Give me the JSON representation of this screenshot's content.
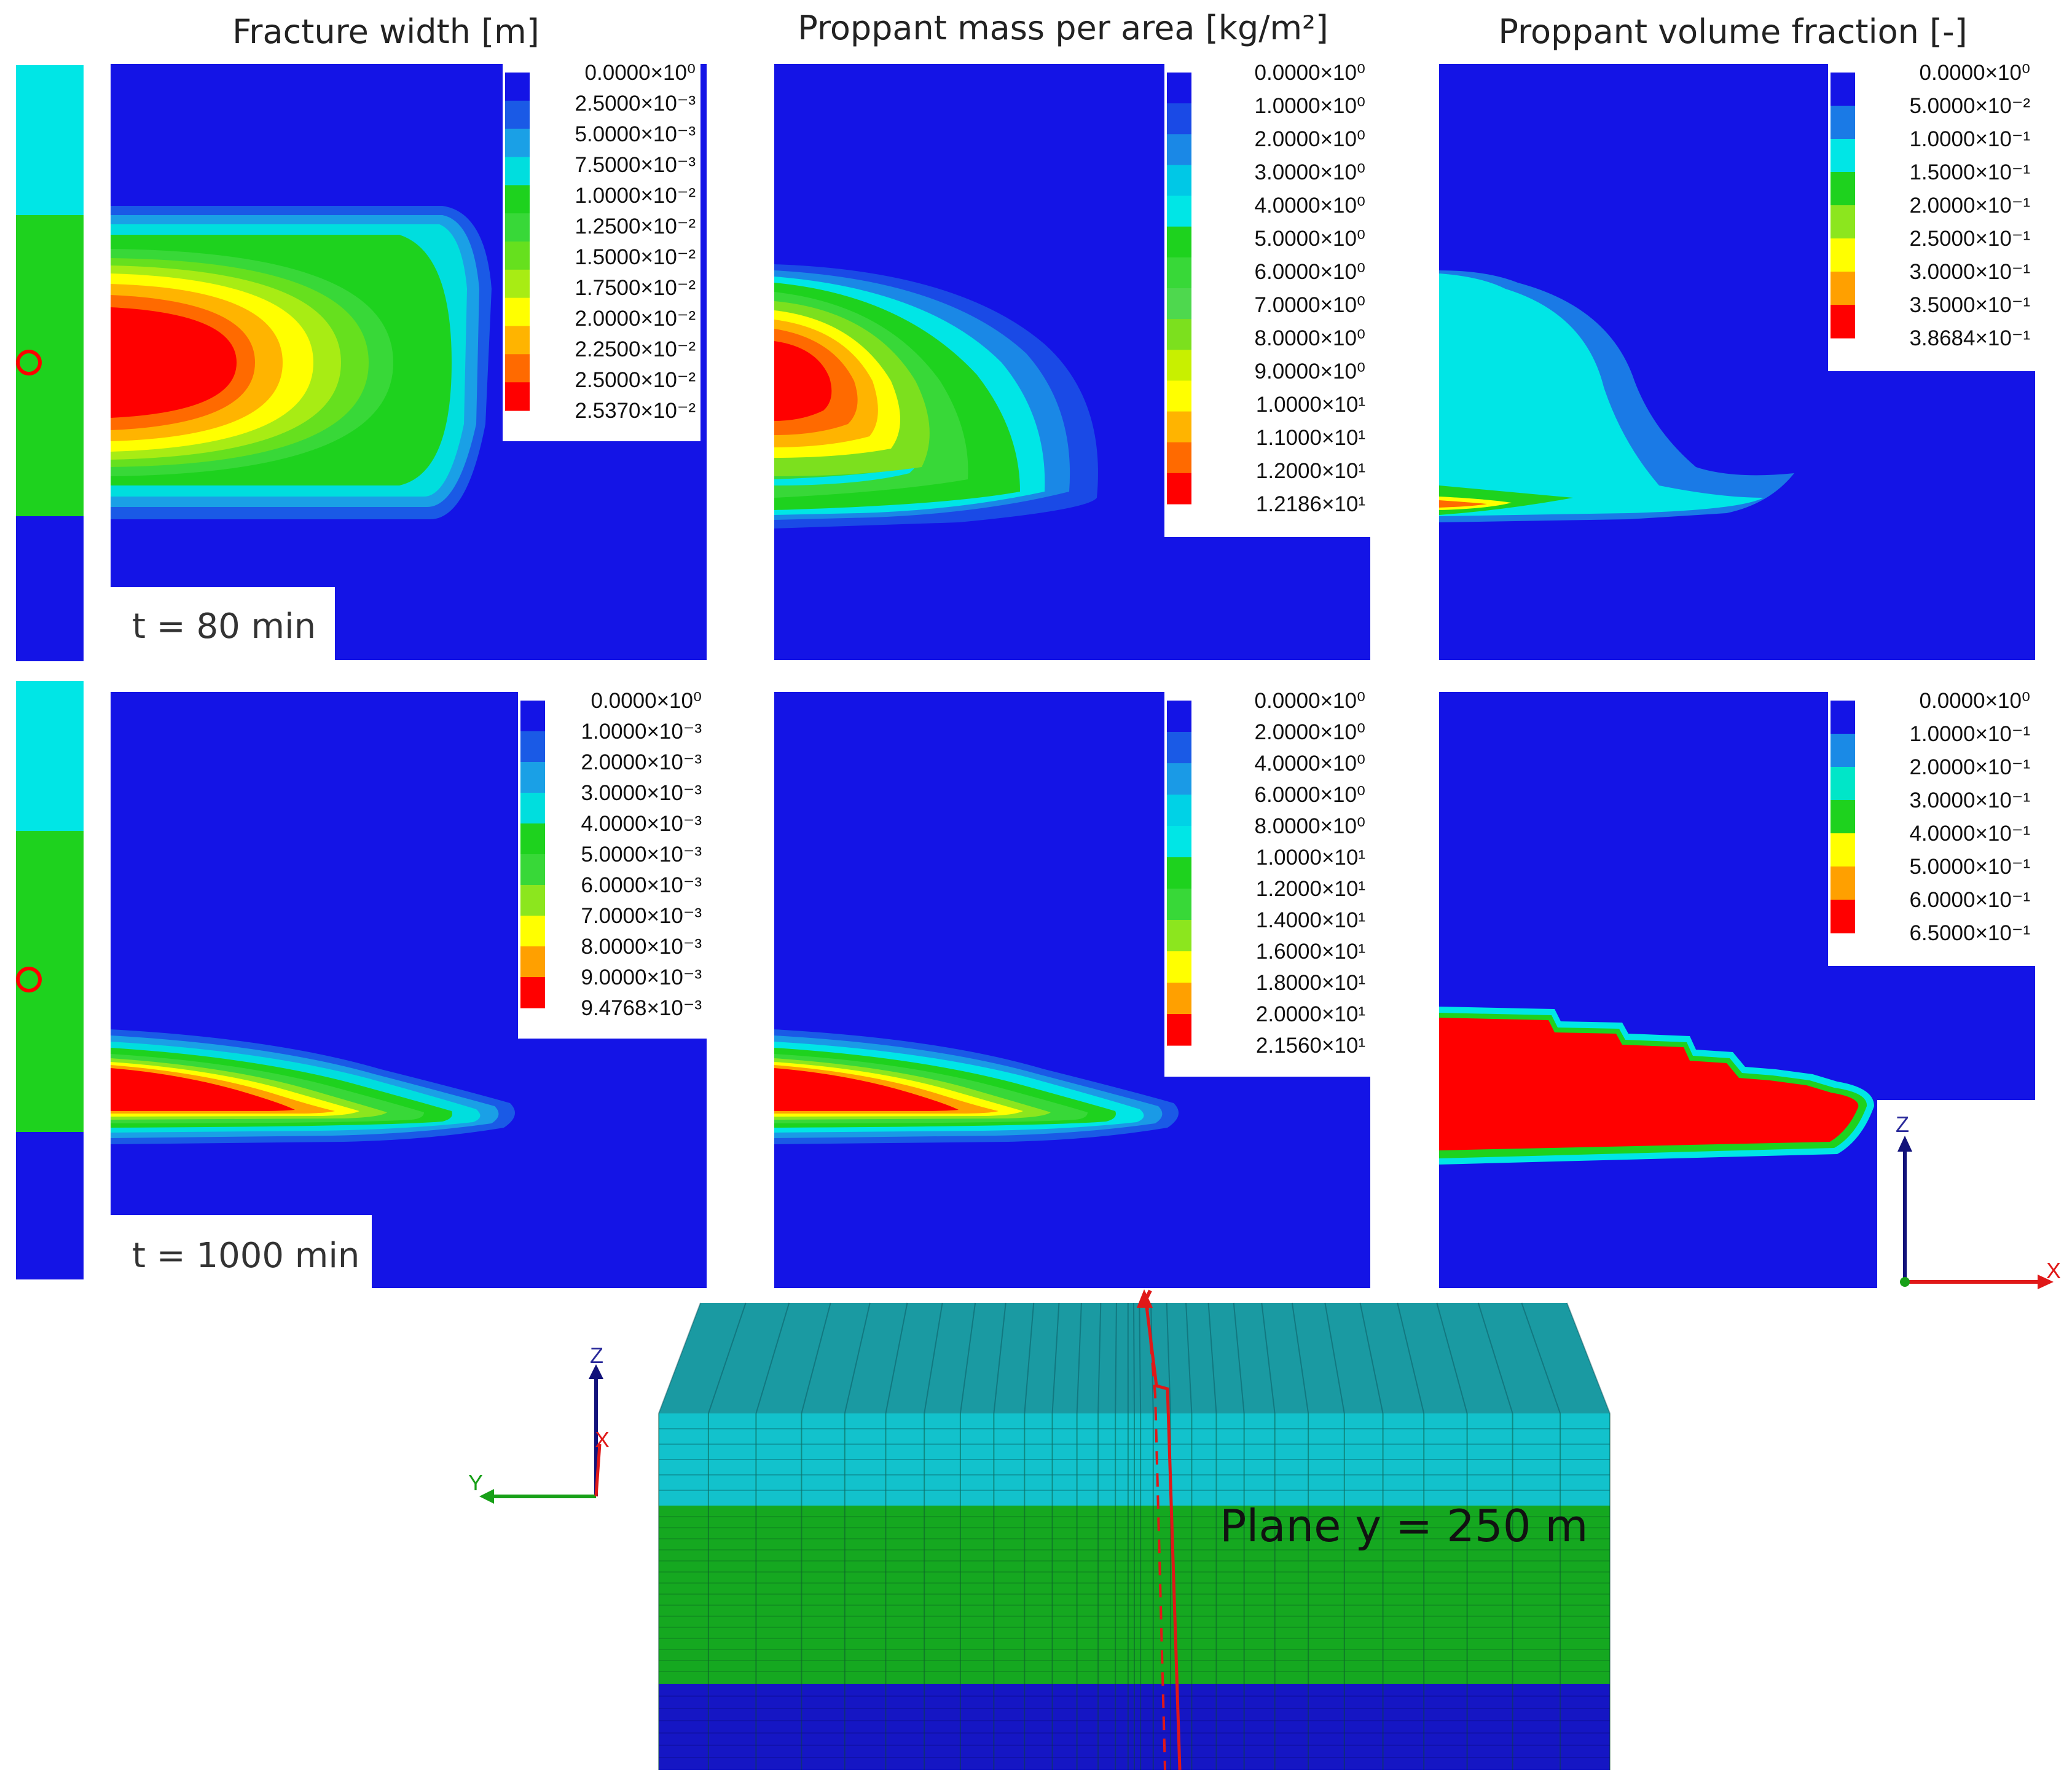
{
  "colors": {
    "blue": "#1414e6",
    "cyan": "#00e6e6",
    "green": "#1ed21e",
    "red": "#ff0000",
    "block_top": "#1a9aa2",
    "block_cyan": "#12c2cc",
    "block_green": "#15a820",
    "block_blue": "#1516c4"
  },
  "column_titles": [
    "Fracture width [m]",
    "Proppant mass per area [kg/m²]",
    "Proppant volume fraction [-]"
  ],
  "rows": [
    {
      "time_label": "t = 80 min",
      "panels": [
        {
          "legend": {
            "labels": [
              "0.0000×10⁰",
              "2.5000×10⁻³",
              "5.0000×10⁻³",
              "7.5000×10⁻³",
              "1.0000×10⁻²",
              "1.2500×10⁻²",
              "1.5000×10⁻²",
              "1.7500×10⁻²",
              "2.0000×10⁻²",
              "2.2500×10⁻²",
              "2.5000×10⁻²",
              "2.5370×10⁻²"
            ],
            "colors": [
              "#1414e6",
              "#1a5ae6",
              "#1aa0e6",
              "#00dede",
              "#1ed21e",
              "#38d838",
              "#66e01e",
              "#a8ec14",
              "#ffff00",
              "#ffb400",
              "#ff6a00",
              "#ff0000"
            ]
          }
        },
        {
          "legend": {
            "labels": [
              "0.0000×10⁰",
              "1.0000×10⁰",
              "2.0000×10⁰",
              "3.0000×10⁰",
              "4.0000×10⁰",
              "5.0000×10⁰",
              "6.0000×10⁰",
              "7.0000×10⁰",
              "8.0000×10⁰",
              "9.0000×10⁰",
              "1.0000×10¹",
              "1.1000×10¹",
              "1.2000×10¹",
              "1.2186×10¹"
            ],
            "colors": [
              "#1414e6",
              "#1a4ae6",
              "#1a88e6",
              "#00c8e6",
              "#00e6e6",
              "#1ed21e",
              "#38d838",
              "#4ed84e",
              "#7ce01e",
              "#c8f000",
              "#ffff00",
              "#ffb400",
              "#ff6a00",
              "#ff0000"
            ]
          }
        },
        {
          "legend": {
            "labels": [
              "0.0000×10⁰",
              "5.0000×10⁻²",
              "1.0000×10⁻¹",
              "1.5000×10⁻¹",
              "2.0000×10⁻¹",
              "2.5000×10⁻¹",
              "3.0000×10⁻¹",
              "3.5000×10⁻¹",
              "3.8684×10⁻¹"
            ],
            "colors": [
              "#1414e6",
              "#1a7ae6",
              "#00e6e6",
              "#1ed21e",
              "#8ce61e",
              "#ffff00",
              "#ffa000",
              "#ff0000"
            ]
          }
        }
      ]
    },
    {
      "time_label": "t = 1000 min",
      "panels": [
        {
          "legend": {
            "labels": [
              "0.0000×10⁰",
              "1.0000×10⁻³",
              "2.0000×10⁻³",
              "3.0000×10⁻³",
              "4.0000×10⁻³",
              "5.0000×10⁻³",
              "6.0000×10⁻³",
              "7.0000×10⁻³",
              "8.0000×10⁻³",
              "9.0000×10⁻³",
              "9.4768×10⁻³"
            ],
            "colors": [
              "#1414e6",
              "#1a5ae6",
              "#1aa0e6",
              "#00dede",
              "#1ed21e",
              "#38d838",
              "#8ce61e",
              "#ffff00",
              "#ffa000",
              "#ff0000"
            ]
          }
        },
        {
          "legend": {
            "labels": [
              "0.0000×10⁰",
              "2.0000×10⁰",
              "4.0000×10⁰",
              "6.0000×10⁰",
              "8.0000×10⁰",
              "1.0000×10¹",
              "1.2000×10¹",
              "1.4000×10¹",
              "1.6000×10¹",
              "1.8000×10¹",
              "2.0000×10¹",
              "2.1560×10¹"
            ],
            "colors": [
              "#1414e6",
              "#1a5ae6",
              "#1a9ae6",
              "#00d2e6",
              "#00e6e6",
              "#1ed21e",
              "#38d838",
              "#8ce61e",
              "#ffff00",
              "#ffa000",
              "#ff0000"
            ]
          }
        },
        {
          "legend": {
            "labels": [
              "0.0000×10⁰",
              "1.0000×10⁻¹",
              "2.0000×10⁻¹",
              "3.0000×10⁻¹",
              "4.0000×10⁻¹",
              "5.0000×10⁻¹",
              "6.0000×10⁻¹",
              "6.5000×10⁻¹"
            ],
            "colors": [
              "#1414e6",
              "#1a8ae6",
              "#00e6c8",
              "#1ed21e",
              "#ffff00",
              "#ffa000",
              "#ff0000"
            ]
          }
        }
      ]
    }
  ],
  "axis_labels": {
    "z": "Z",
    "x": "X",
    "y": "Y"
  },
  "plane_label": "Plane y = 250 m"
}
